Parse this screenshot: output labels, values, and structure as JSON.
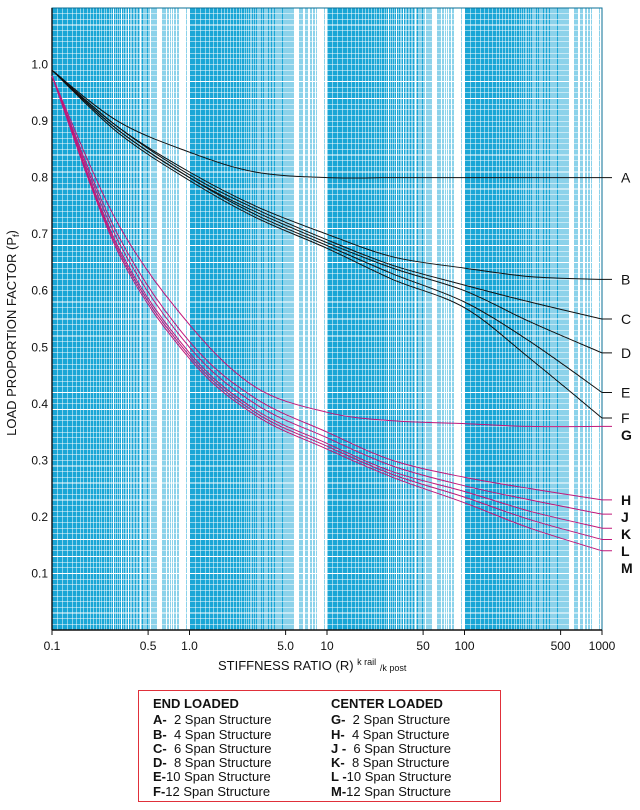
{
  "chart_data": {
    "type": "line",
    "x_scale": "log",
    "xlabel": "STIFFNESS RATIO (R)",
    "xlabel_superscript": "k rail",
    "xlabel_subscript": "/k post",
    "ylabel": "LOAD PROPORTION FACTOR (P",
    "ylabel_subscript": "f",
    "ylabel_close": ")",
    "xlim": [
      0.1,
      1000
    ],
    "ylim": [
      0.0,
      1.1
    ],
    "grid": true,
    "x_tick_labels": [
      {
        "value": 0.1,
        "label": "0.1"
      },
      {
        "value": 0.5,
        "label": "0.5"
      },
      {
        "value": 1,
        "label": "1.0"
      },
      {
        "value": 5,
        "label": "5.0"
      },
      {
        "value": 10,
        "label": "10"
      },
      {
        "value": 50,
        "label": "50"
      },
      {
        "value": 100,
        "label": "100"
      },
      {
        "value": 500,
        "label": "500"
      },
      {
        "value": 1000,
        "label": "1000"
      }
    ],
    "y_tick_labels": [
      {
        "value": 0.1,
        "label": "0.1"
      },
      {
        "value": 0.2,
        "label": "0.2"
      },
      {
        "value": 0.3,
        "label": "0.3"
      },
      {
        "value": 0.4,
        "label": "0.4"
      },
      {
        "value": 0.5,
        "label": "0.5"
      },
      {
        "value": 0.6,
        "label": "0.6"
      },
      {
        "value": 0.7,
        "label": "0.7"
      },
      {
        "value": 0.8,
        "label": "0.8"
      },
      {
        "value": 0.9,
        "label": "0.9"
      },
      {
        "value": 1.0,
        "label": "1.0"
      }
    ],
    "x": [
      0.1,
      0.3,
      1,
      3,
      10,
      30,
      100,
      300,
      1000
    ],
    "series": [
      {
        "name": "A",
        "group": "end",
        "values": [
          0.99,
          0.9,
          0.845,
          0.81,
          0.8,
          0.8,
          0.8,
          0.8,
          0.8
        ]
      },
      {
        "name": "B",
        "group": "end",
        "values": [
          0.99,
          0.89,
          0.81,
          0.75,
          0.7,
          0.66,
          0.64,
          0.625,
          0.62
        ]
      },
      {
        "name": "C",
        "group": "end",
        "values": [
          0.99,
          0.89,
          0.805,
          0.745,
          0.69,
          0.645,
          0.61,
          0.58,
          0.55
        ]
      },
      {
        "name": "D",
        "group": "end",
        "values": [
          0.99,
          0.885,
          0.8,
          0.74,
          0.685,
          0.64,
          0.6,
          0.545,
          0.49
        ]
      },
      {
        "name": "E",
        "group": "end",
        "values": [
          0.99,
          0.885,
          0.8,
          0.735,
          0.68,
          0.63,
          0.58,
          0.51,
          0.42
        ]
      },
      {
        "name": "F",
        "group": "end",
        "values": [
          0.99,
          0.88,
          0.795,
          0.73,
          0.675,
          0.62,
          0.57,
          0.48,
          0.375
        ]
      },
      {
        "name": "G",
        "group": "center",
        "values": [
          0.98,
          0.72,
          0.54,
          0.43,
          0.385,
          0.37,
          0.365,
          0.36,
          0.36
        ]
      },
      {
        "name": "H",
        "group": "center",
        "values": [
          0.98,
          0.7,
          0.51,
          0.41,
          0.35,
          0.3,
          0.27,
          0.25,
          0.23
        ]
      },
      {
        "name": "J",
        "group": "center",
        "values": [
          0.98,
          0.69,
          0.5,
          0.4,
          0.34,
          0.29,
          0.255,
          0.23,
          0.205
        ]
      },
      {
        "name": "K",
        "group": "center",
        "values": [
          0.98,
          0.68,
          0.49,
          0.39,
          0.33,
          0.28,
          0.245,
          0.21,
          0.18
        ]
      },
      {
        "name": "L",
        "group": "center",
        "values": [
          0.98,
          0.675,
          0.485,
          0.385,
          0.325,
          0.275,
          0.235,
          0.195,
          0.16
        ]
      },
      {
        "name": "M",
        "group": "center",
        "values": [
          0.98,
          0.67,
          0.48,
          0.38,
          0.32,
          0.27,
          0.225,
          0.18,
          0.14
        ]
      }
    ]
  },
  "legend": {
    "end_title": "END LOADED",
    "center_title": "CENTER LOADED",
    "end_items": [
      {
        "code": "A-",
        "text": "  2 Span Structure"
      },
      {
        "code": "B-",
        "text": "  4 Span Structure"
      },
      {
        "code": "C-",
        "text": "  6 Span Structure"
      },
      {
        "code": "D-",
        "text": "  8 Span Structure"
      },
      {
        "code": "E-",
        "text": "10 Span Structure"
      },
      {
        "code": "F-",
        "text": "12 Span Structure"
      }
    ],
    "center_items": [
      {
        "code": "G-",
        "text": "  2 Span Structure"
      },
      {
        "code": "H-",
        "text": "  4 Span Structure"
      },
      {
        "code": "J -",
        "text": "  6 Span Structure"
      },
      {
        "code": "K-",
        "text": "  8 Span Structure"
      },
      {
        "code": "L -",
        "text": "10 Span Structure"
      },
      {
        "code": "M-",
        "text": "12 Span Structure"
      }
    ]
  },
  "colors": {
    "plot_background": "#1aa6d6",
    "grid_line": "#ffffff",
    "end_loaded": "#111111",
    "center_loaded": "#c0187a",
    "legend_border": "#e0303a"
  }
}
